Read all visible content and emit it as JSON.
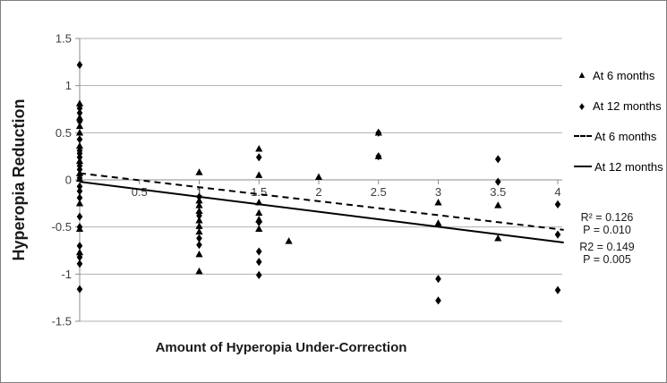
{
  "icons": {
    "triangle_marker": "▲",
    "diamond_marker": "♦"
  },
  "colors": {
    "marker": "#000000",
    "trendline": "#000000",
    "gridline": "#b0b0b0",
    "axis": "#8c8c8c",
    "tick_text": "#3d3d3d"
  },
  "chart_data": {
    "type": "scatter",
    "xlabel": "Amount of Hyperopia Under-Correction",
    "ylabel": "Hyperopia Reduction",
    "xlim": [
      0,
      4.05
    ],
    "ylim": [
      -1.5,
      1.5
    ],
    "x_ticks": [
      0.5,
      1,
      1.5,
      2,
      2.5,
      3,
      3.5,
      4
    ],
    "y_ticks": [
      1.5,
      1,
      0.5,
      0,
      -0.5,
      -1,
      -1.5
    ],
    "grid": "horizontal",
    "legend_position": "right",
    "series": [
      {
        "name": "At 6 months",
        "marker": "triangle",
        "points": [
          [
            0,
            0.81
          ],
          [
            0,
            0.66
          ],
          [
            0,
            0.57
          ],
          [
            0,
            0.5
          ],
          [
            0,
            0.36
          ],
          [
            0,
            0.2
          ],
          [
            0,
            0.07
          ],
          [
            0,
            0.01
          ],
          [
            0,
            -0.25
          ],
          [
            0,
            -0.52
          ],
          [
            0,
            -0.77
          ],
          [
            1,
            0.08
          ],
          [
            1,
            -0.22
          ],
          [
            1,
            -0.27
          ],
          [
            1,
            -0.33
          ],
          [
            1,
            -0.43
          ],
          [
            1,
            -0.49
          ],
          [
            1,
            -0.55
          ],
          [
            1,
            -0.79
          ],
          [
            1,
            -0.97
          ],
          [
            1.5,
            0.33
          ],
          [
            1.5,
            0.05
          ],
          [
            1.5,
            -0.24
          ],
          [
            1.5,
            -0.35
          ],
          [
            1.5,
            -0.42
          ],
          [
            1.5,
            -0.52
          ],
          [
            1.75,
            -0.65
          ],
          [
            2,
            0.03
          ],
          [
            2.5,
            0.5
          ],
          [
            2.5,
            0.25
          ],
          [
            3,
            -0.24
          ],
          [
            3,
            -0.46
          ],
          [
            3.5,
            -0.27
          ],
          [
            3.5,
            -0.62
          ]
        ]
      },
      {
        "name": "At 12 months",
        "marker": "diamond",
        "points": [
          [
            0,
            1.22
          ],
          [
            0,
            0.76
          ],
          [
            0,
            0.71
          ],
          [
            0,
            0.62
          ],
          [
            0,
            0.43
          ],
          [
            0,
            0.31
          ],
          [
            0,
            0.28
          ],
          [
            0,
            0.24
          ],
          [
            0,
            0.15
          ],
          [
            0,
            0.11
          ],
          [
            0,
            0.02
          ],
          [
            0,
            -0.07
          ],
          [
            0,
            -0.12
          ],
          [
            0,
            -0.19
          ],
          [
            0,
            -0.39
          ],
          [
            0,
            -0.5
          ],
          [
            0,
            -0.7
          ],
          [
            0,
            -0.82
          ],
          [
            0,
            -0.89
          ],
          [
            0,
            -1.16
          ],
          [
            1,
            -0.18
          ],
          [
            1,
            -0.38
          ],
          [
            1,
            -0.62
          ],
          [
            1,
            -0.69
          ],
          [
            1.5,
            0.24
          ],
          [
            1.5,
            -0.45
          ],
          [
            1.5,
            -0.76
          ],
          [
            1.5,
            -0.87
          ],
          [
            1.5,
            -1.01
          ],
          [
            2.5,
            0.5
          ],
          [
            2.5,
            0.25
          ],
          [
            3,
            -1.05
          ],
          [
            3,
            -1.28
          ],
          [
            3.5,
            0.22
          ],
          [
            3.5,
            -0.02
          ],
          [
            4,
            -0.26
          ],
          [
            4,
            -0.58
          ],
          [
            4,
            -1.17
          ]
        ]
      }
    ],
    "trendlines": [
      {
        "name": "At 6 months",
        "style": "dashed",
        "x1": 0,
        "y1": 0.07,
        "x2": 4.05,
        "y2": -0.53
      },
      {
        "name": "At 12 months",
        "style": "solid",
        "x1": 0,
        "y1": -0.02,
        "x2": 4.05,
        "y2": -0.665
      }
    ],
    "annotations": [
      {
        "lines": [
          "R² = 0.126",
          "P = 0.010"
        ]
      },
      {
        "lines": [
          "R2 = 0.149",
          "P = 0.005"
        ]
      }
    ]
  }
}
